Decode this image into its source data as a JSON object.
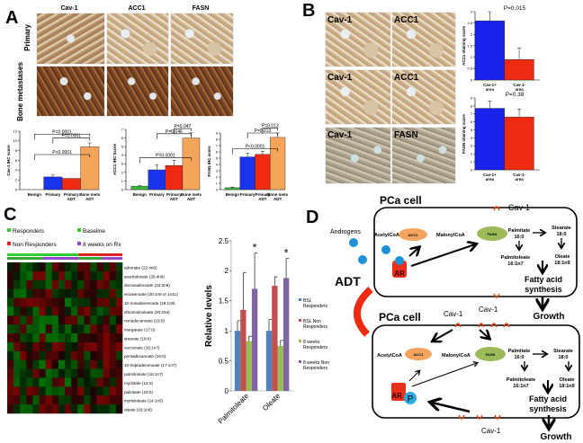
{
  "panels": {
    "a": "A",
    "b": "B",
    "c": "C",
    "d": "D"
  },
  "panel_a": {
    "columns": [
      "Cav-1",
      "ACC1",
      "FASN"
    ],
    "rows": [
      "Primary",
      "Bone metastases"
    ]
  },
  "panel_b": {
    "image_labels": [
      "Cav-1",
      "ACC1",
      "Cav-1",
      "ACC1",
      "Cav-1",
      "FASN"
    ]
  },
  "panel_c": {
    "legend": [
      {
        "label": "Responders",
        "color": "#33cc33"
      },
      {
        "label": "Baseline",
        "color": "#33cc33"
      },
      {
        "label": "Non Responders",
        "color": "#dd2222"
      },
      {
        "label": "8 weeks on Rx",
        "color": "#9944cc"
      }
    ],
    "heatmap_rows": [
      "adrenate (22:4n6)",
      "arachidonate (20:4n6)",
      "docosadienoate (22:2n6)",
      "eicosenoate (20:1n9 or 1n11)",
      "10-nonadecenoate (19:1n9)",
      "dihomolinoleate (20:2n6)",
      "nonadecanoate (19:0)",
      "margarate (17:0)",
      "stearate (18:0)",
      "vaccenate (18:1n7)",
      "pentadecanoate (15:0)",
      "10-heptadecenoate (17:1n7)",
      "palmitoleate (16:1n7)",
      "myristate (14:0)",
      "palmitate (16:0)",
      "myristoleate (14:1n5)",
      "oleate (18:1n9)"
    ]
  },
  "panel_d": {
    "cell_label": "PCa cell",
    "cav1": "Cav-1",
    "androgens": "Androgens",
    "adt": "ADT",
    "acetylcoa": "AcetylCoA",
    "acc1": "ACC1",
    "malonylcoa": "MalonylCoA",
    "fasn": "FASN",
    "palmitate": [
      "Palmitate",
      "16:0"
    ],
    "stearate": [
      "Stearate",
      "18:0"
    ],
    "palmitoleate": [
      "Palmitoleate",
      "16:1n7"
    ],
    "oleate": [
      "Oleate",
      "18:1n9"
    ],
    "fas": [
      "Fatty acid",
      "synthesis"
    ],
    "growth": "Growth",
    "ar": "AR",
    "p": "P"
  },
  "chart_data": [
    {
      "id": "a1",
      "type": "bar",
      "ylabel": "Cav-1 IHC score",
      "ylim": [
        0,
        12
      ],
      "yticks": [
        0,
        2,
        4,
        6,
        8,
        10,
        12
      ],
      "categories": [
        [
          "Benign"
        ],
        [
          "Primary"
        ],
        [
          "Primary",
          "ADT"
        ],
        [
          "Bone mets",
          "ADT"
        ]
      ],
      "values": [
        0,
        2.6,
        2.3,
        8.8
      ],
      "errors": [
        0,
        0.4,
        0,
        0.8
      ],
      "colors": [
        "#33bb33",
        "#1a33ee",
        "#ee2a10",
        "#f5a55a"
      ],
      "annotations": [
        {
          "text": "P=0.0001",
          "from": 0,
          "to": 3,
          "level": 11.4
        },
        {
          "text": "P=0.0001",
          "from": 1,
          "to": 3,
          "level": 10.6
        },
        {
          "text": "P<0.0001",
          "from": 0,
          "to": 3,
          "level": 7.2
        }
      ]
    },
    {
      "id": "a2",
      "type": "bar",
      "ylabel": "ACC1 IHC Score",
      "ylim": [
        0,
        7
      ],
      "yticks": [
        0,
        1,
        2,
        3,
        4,
        5,
        6,
        7
      ],
      "categories": [
        [
          "Benign"
        ],
        [
          "Primary"
        ],
        [
          "Primary",
          "ADT"
        ],
        [
          "Bone mets",
          "ADT"
        ]
      ],
      "values": [
        0.4,
        2.3,
        2.8,
        6.0
      ],
      "errors": [
        0.1,
        0.6,
        0.6,
        0.6
      ],
      "colors": [
        "#33bb33",
        "#1a33ee",
        "#ee2a10",
        "#f5a55a"
      ],
      "annotations": [
        {
          "text": "P=0.047",
          "from": 2,
          "to": 3,
          "level": 7.1
        },
        {
          "text": "P=0.046",
          "from": 1,
          "to": 3,
          "level": 6.5
        },
        {
          "text": "P=0.0001",
          "from": 0,
          "to": 3,
          "level": 3.7
        }
      ]
    },
    {
      "id": "a3",
      "type": "bar",
      "ylabel": "FASN IHC score",
      "ylim": [
        0,
        9
      ],
      "yticks": [
        0,
        1,
        2,
        3,
        4,
        5,
        6,
        7,
        8,
        9
      ],
      "categories": [
        [
          "Benign"
        ],
        [
          "Primary"
        ],
        [
          "Primary",
          "ADT"
        ],
        [
          "Bone mets",
          "ADT"
        ]
      ],
      "values": [
        0.3,
        5.2,
        5.6,
        8.3
      ],
      "errors": [
        0.1,
        0.6,
        0.5,
        0.7
      ],
      "colors": [
        "#33bb33",
        "#1a33ee",
        "#ee2a10",
        "#f5a55a"
      ],
      "annotations": [
        {
          "text": "P=0.013",
          "from": 2,
          "to": 3,
          "level": 9.8
        },
        {
          "text": "P=0.013",
          "from": 1,
          "to": 3,
          "level": 9.0
        },
        {
          "text": "P<0.0001",
          "from": 0,
          "to": 3,
          "level": 6.5
        }
      ]
    },
    {
      "id": "b1",
      "type": "bar",
      "ylabel": "ACC1 staining score",
      "ylim": [
        0,
        3
      ],
      "yticks": [
        0,
        0.5,
        1,
        1.5,
        2,
        2.5,
        3
      ],
      "categories": [
        [
          "Cav-1+",
          "area"
        ],
        [
          "Cav-1-",
          "area"
        ]
      ],
      "values": [
        2.6,
        0.9
      ],
      "errors": [
        0.4,
        0.5
      ],
      "colors": [
        "#1a22ee",
        "#ee2a10"
      ],
      "annotations": [
        {
          "text": "P=0.015"
        }
      ]
    },
    {
      "id": "b2",
      "type": "bar",
      "ylabel": "FASN staining score",
      "ylim": [
        0,
        9
      ],
      "yticks": [
        0,
        1,
        2,
        3,
        4,
        5,
        6,
        7,
        8,
        9
      ],
      "categories": [
        [
          "Cav-1+",
          "area"
        ],
        [
          "Cav-1-",
          "area"
        ]
      ],
      "values": [
        7.7,
        6.6
      ],
      "errors": [
        0.9,
        1.0
      ],
      "colors": [
        "#1a22ee",
        "#ee2a10"
      ],
      "annotations": [
        {
          "text": "P=0.38"
        }
      ]
    },
    {
      "id": "c1",
      "type": "bar",
      "ylabel": "Relative levels",
      "ylim": [
        0,
        2.5
      ],
      "yticks": [
        "0",
        "0.5",
        "1",
        "1.5",
        "2",
        "2.5"
      ],
      "categories": [
        "Palmitoleate",
        "Oleate"
      ],
      "series": [
        {
          "name": "BSL Responders",
          "color": "#4f81bd",
          "values": [
            1.0,
            1.0
          ],
          "errors": [
            0.17,
            0.19
          ]
        },
        {
          "name": "BSL Non Responders",
          "color": "#c0504d",
          "values": [
            1.35,
            1.75
          ],
          "errors": [
            0.62,
            0.15
          ]
        },
        {
          "name": "8 weeks Responders",
          "color": "#9bbb59",
          "values": [
            0.83,
            0.75
          ],
          "errors": [
            0.08,
            0.09
          ]
        },
        {
          "name": "8 weeks Non Responders",
          "color": "#8064a2",
          "values": [
            1.7,
            1.88
          ],
          "errors": [
            0.6,
            0.33
          ]
        }
      ],
      "significance": [
        "*",
        "*"
      ],
      "legend": "right"
    }
  ]
}
